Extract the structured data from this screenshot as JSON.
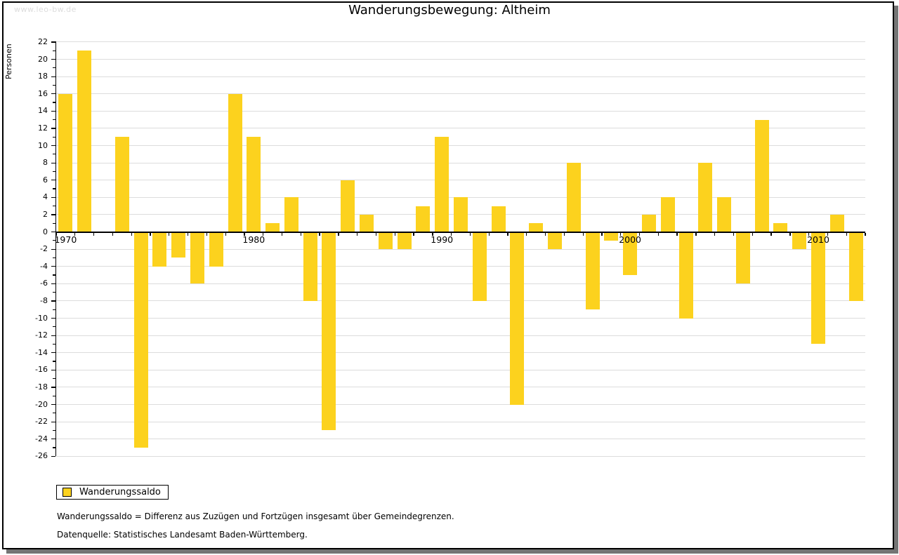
{
  "watermark": "www.leo-bw.de",
  "title": "Wanderungsbewegung: Altheim",
  "chart_data": {
    "type": "bar",
    "title": "Wanderungsbewegung: Altheim",
    "ylabel": "Personen",
    "xlabel": "",
    "series_name": "Wanderungssaldo",
    "categories": [
      1970,
      1971,
      1972,
      1973,
      1974,
      1975,
      1976,
      1977,
      1978,
      1979,
      1980,
      1981,
      1982,
      1983,
      1984,
      1985,
      1986,
      1987,
      1988,
      1989,
      1990,
      1991,
      1992,
      1993,
      1994,
      1995,
      1996,
      1997,
      1998,
      1999,
      2000,
      2001,
      2002,
      2003,
      2004,
      2005,
      2006,
      2007,
      2008,
      2009,
      2010,
      2011,
      2012
    ],
    "values": [
      16,
      21,
      0,
      11,
      -25,
      -4,
      -3,
      -6,
      -4,
      16,
      11,
      1,
      4,
      -8,
      -23,
      6,
      2,
      -2,
      -2,
      3,
      11,
      4,
      -8,
      3,
      -20,
      1,
      -2,
      8,
      -9,
      -1,
      -5,
      2,
      4,
      -10,
      8,
      4,
      -6,
      13,
      1,
      -2,
      -13,
      2,
      -8
    ],
    "ylim": [
      -26,
      22
    ],
    "ytick_label_interval": 2,
    "ytick_minor_interval": 1,
    "xtick_labels": [
      "1970",
      "1980",
      "1990",
      "2000",
      "2010"
    ],
    "grid": true,
    "legend_position": "bottom-left",
    "bar_color": "#FCD21E",
    "gridline_color": "#dcdcdc",
    "axis_color": "#000000"
  },
  "legend": {
    "label": "Wanderungssaldo",
    "swatch_color": "#FCD21E"
  },
  "footnotes": [
    "Wanderungssaldo = Differenz aus Zuzügen und Fortzügen insgesamt über Gemeindegrenzen.",
    "Datenquelle: Statistisches Landesamt Baden-Württemberg."
  ]
}
